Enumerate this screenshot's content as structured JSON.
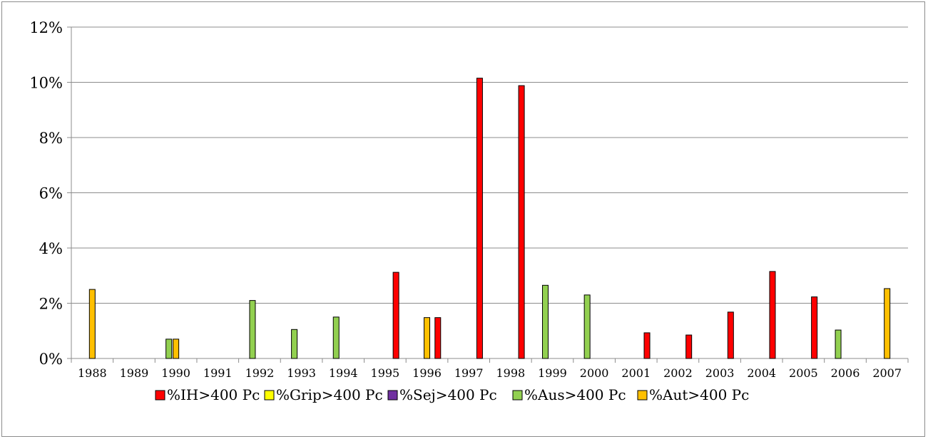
{
  "chart_data": {
    "type": "bar",
    "title": "",
    "xlabel": "",
    "ylabel": "",
    "ylim": [
      0,
      0.12
    ],
    "yticks": [
      "0%",
      "2%",
      "4%",
      "6%",
      "8%",
      "10%",
      "12%"
    ],
    "ytick_values": [
      0,
      0.02,
      0.04,
      0.06,
      0.08,
      0.1,
      0.12
    ],
    "grid": true,
    "legend_position": "bottom",
    "categories": [
      "1988",
      "1989",
      "1990",
      "1991",
      "1992",
      "1993",
      "1994",
      "1995",
      "1996",
      "1997",
      "1998",
      "1999",
      "2000",
      "2001",
      "2002",
      "2003",
      "2004",
      "2005",
      "2006",
      "2007"
    ],
    "series": [
      {
        "name": "%IH>400 Pc",
        "color": "#ff0000",
        "values": [
          0,
          0,
          0,
          0,
          0,
          0,
          0,
          0.0312,
          0.0148,
          0.1015,
          0.0988,
          0,
          0,
          0.0093,
          0.0085,
          0.0168,
          0.0315,
          0.0223,
          0,
          0
        ]
      },
      {
        "name": "%Grip>400 Pc",
        "color": "#ffff00",
        "values": [
          0,
          0,
          0,
          0,
          0,
          0,
          0,
          0,
          0,
          0,
          0,
          0,
          0,
          0,
          0,
          0,
          0,
          0,
          0,
          0
        ]
      },
      {
        "name": "%Sej>400 Pc",
        "color": "#7030a0",
        "values": [
          0,
          0,
          0,
          0,
          0,
          0,
          0,
          0,
          0,
          0,
          0,
          0,
          0,
          0,
          0,
          0,
          0,
          0,
          0,
          0
        ]
      },
      {
        "name": "%Aus>400 Pc",
        "color": "#92d050",
        "values": [
          0,
          0,
          0.007,
          0,
          0.021,
          0.0105,
          0.015,
          0,
          0,
          0,
          0,
          0.0265,
          0.023,
          0,
          0,
          0,
          0,
          0,
          0.0103,
          0
        ]
      },
      {
        "name": "%Aut>400 Pc",
        "color": "#ffc000",
        "values": [
          0.025,
          0,
          0.007,
          0,
          0,
          0,
          0,
          0,
          0.0148,
          0,
          0,
          0,
          0,
          0,
          0,
          0,
          0,
          0,
          0,
          0.0253
        ]
      }
    ]
  }
}
